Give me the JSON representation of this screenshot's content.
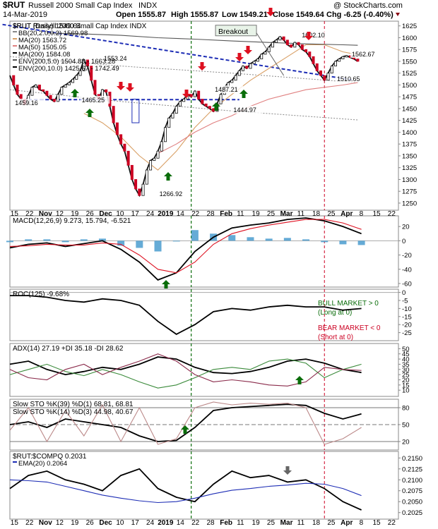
{
  "header": {
    "symbol": "$RUT",
    "name": "Russell 2000 Small Cap Index",
    "exchange": "INDX",
    "date": "14-Mar-2019",
    "open": "Open 1555.87",
    "high": "High 1555.87",
    "low": "Low 1549.21",
    "close": "Close 1549.64",
    "chg": "Chg -6.25 (-0.40%)",
    "watermark": "@ StockCharts.com"
  },
  "colors": {
    "price_up": "#111111",
    "price_down": "#cc0022",
    "ma20": "#d9a066",
    "ma50": "#e08080",
    "ma200": "#555555",
    "env_dotted": "#888888",
    "trendline": "#1d2db5",
    "breakout_green": "#0a6d0a",
    "march_red": "#cc0022",
    "arrow_green": "#0a6d0a",
    "arrow_red": "#dd1020",
    "arrow_gray": "#666666",
    "macd_hist": "#4a9ccf",
    "signal_red": "#dd1020"
  },
  "chart_data": [
    {
      "type": "line",
      "panel": "price",
      "title": "$RUT Russell 2000 Small Cap Index INDX",
      "legend": [
        "$RUT (Daily) 1549.64",
        "BB(20,2.0,0.2) 1569.98",
        "MA(20) 1563.72",
        "MA(50) 1505.05",
        "MA(200) 1584.08",
        "ENV(200,5.0) 1504.88 - 1663.28",
        "ENV(200,10.0) 1425.67 - 1742.49"
      ],
      "ylim": [
        1235,
        1635
      ],
      "yticks": [
        1250,
        1275,
        1300,
        1325,
        1350,
        1375,
        1400,
        1425,
        1450,
        1475,
        1500,
        1525,
        1550,
        1575,
        1600,
        1625
      ],
      "series": [
        {
          "name": "$RUT (Daily)",
          "x": [
            0,
            2,
            4,
            6,
            8,
            10,
            12,
            14,
            16,
            18,
            20,
            22,
            24,
            26,
            28,
            30,
            32,
            34,
            36,
            38,
            40,
            42,
            44,
            46,
            48,
            50,
            52,
            54,
            56,
            58,
            60,
            62,
            64,
            66,
            68,
            70,
            72,
            74,
            76,
            78,
            80,
            82,
            84,
            86,
            88,
            90,
            92,
            94,
            96,
            98,
            100,
            102,
            104,
            106,
            108,
            110,
            112,
            114,
            116,
            118,
            120,
            122,
            124,
            126,
            128,
            130,
            132,
            134,
            136,
            138,
            140,
            142,
            144,
            146,
            148,
            150,
            152,
            154,
            156,
            158,
            160,
            162,
            164,
            166,
            168,
            170,
            172,
            174,
            176,
            178,
            180,
            182,
            184,
            186,
            188
          ],
          "values": [
            1520,
            1500,
            1480,
            1470,
            1459,
            1478,
            1495,
            1500,
            1490,
            1487,
            1478,
            1470,
            1465,
            1480,
            1495,
            1500,
            1505,
            1512,
            1520,
            1530,
            1553,
            1540,
            1510,
            1480,
            1470,
            1490,
            1485,
            1455,
            1420,
            1395,
            1375,
            1360,
            1330,
            1300,
            1280,
            1266,
            1290,
            1320,
            1340,
            1345,
            1360,
            1380,
            1410,
            1430,
            1440,
            1455,
            1465,
            1470,
            1480,
            1475,
            1487,
            1470,
            1460,
            1455,
            1450,
            1444,
            1460,
            1480,
            1495,
            1505,
            1510,
            1520,
            1530,
            1540,
            1535,
            1545,
            1550,
            1555,
            1565,
            1570,
            1580,
            1590,
            1595,
            1602,
            1595,
            1585,
            1580,
            1590,
            1585,
            1575,
            1570,
            1560,
            1545,
            1530,
            1520,
            1510,
            1525,
            1540,
            1550,
            1555,
            1560,
            1562,
            1558,
            1555,
            1550
          ]
        },
        {
          "name": "MA(20)",
          "x": [
            40,
            50,
            60,
            70,
            80,
            90,
            100,
            110,
            120,
            130,
            140,
            150,
            160,
            170,
            180,
            188
          ],
          "values": [
            1440,
            1420,
            1390,
            1350,
            1320,
            1360,
            1410,
            1450,
            1480,
            1510,
            1535,
            1560,
            1585,
            1585,
            1570,
            1564
          ]
        },
        {
          "name": "MA(50)",
          "x": [
            80,
            90,
            100,
            110,
            120,
            130,
            140,
            150,
            160,
            170,
            180,
            188
          ],
          "values": [
            1355,
            1375,
            1400,
            1420,
            1435,
            1455,
            1470,
            1480,
            1490,
            1495,
            1500,
            1505
          ]
        },
        {
          "name": "MA(200)",
          "x": [
            20,
            40,
            60,
            80,
            100,
            120,
            140,
            160,
            180,
            188
          ],
          "values": [
            1610,
            1608,
            1605,
            1600,
            1597,
            1593,
            1590,
            1587,
            1585,
            1584
          ]
        }
      ],
      "annotations": [
        {
          "text": "1459.16",
          "x": 10,
          "y": 1459
        },
        {
          "text": "1553.24",
          "x": 58,
          "y": 1553
        },
        {
          "text": "1465.25",
          "x": 46,
          "y": 1465
        },
        {
          "text": "1266.92",
          "x": 88,
          "y": 1266
        },
        {
          "text": "1487.21",
          "x": 118,
          "y": 1487
        },
        {
          "text": "1444.97",
          "x": 128,
          "y": 1444
        },
        {
          "text": "1602.10",
          "x": 165,
          "y": 1602
        },
        {
          "text": "1562.67",
          "x": 192,
          "y": 1562
        },
        {
          "text": "1510.65",
          "x": 184,
          "y": 1510
        },
        {
          "text": "Breakout",
          "x": 118,
          "y": 1610
        }
      ],
      "xticks": [
        "15",
        "22",
        "Nov",
        "12",
        "19",
        "26",
        "Dec",
        "10",
        "17",
        "24",
        "2019",
        "14",
        "22",
        "28",
        "Feb",
        "11",
        "19",
        "25",
        "Mar",
        "11",
        "18",
        "25",
        "Apr",
        "8",
        "15",
        "22"
      ]
    },
    {
      "type": "line",
      "panel": "macd",
      "title": "MACD(12,26,9) 9.273, 15.794, -6.521",
      "ylim": [
        -65,
        35
      ],
      "yticks": [
        20,
        0,
        -20,
        -40,
        -60
      ],
      "series": [
        {
          "name": "MACD",
          "x": [
            0,
            10,
            20,
            30,
            40,
            50,
            60,
            70,
            80,
            90,
            100,
            110,
            120,
            130,
            140,
            150,
            160,
            170,
            180,
            190
          ],
          "values": [
            -10,
            -5,
            -3,
            -8,
            -4,
            0,
            -12,
            -30,
            -55,
            -45,
            -15,
            5,
            18,
            22,
            25,
            30,
            32,
            28,
            20,
            10
          ]
        },
        {
          "name": "Signal",
          "x": [
            0,
            10,
            20,
            30,
            40,
            50,
            60,
            70,
            80,
            90,
            100,
            110,
            120,
            130,
            140,
            150,
            160,
            170,
            180,
            190
          ],
          "values": [
            -8,
            -7,
            -5,
            -6,
            -6,
            -3,
            -5,
            -20,
            -40,
            -45,
            -30,
            -5,
            10,
            17,
            22,
            26,
            30,
            30,
            25,
            16
          ]
        }
      ]
    },
    {
      "type": "line",
      "panel": "roc",
      "title": "ROC(125) -9.68%",
      "ylim": [
        -30,
        2
      ],
      "yticks": [
        0,
        -5,
        -10,
        -15,
        -20,
        -25
      ],
      "series": [
        {
          "name": "ROC(125)",
          "x": [
            0,
            10,
            20,
            30,
            40,
            50,
            60,
            70,
            80,
            90,
            100,
            110,
            120,
            130,
            140,
            150,
            160,
            170,
            180,
            190
          ],
          "values": [
            -2,
            -2,
            -3,
            -5,
            -6,
            -4,
            -5,
            -8,
            -18,
            -26,
            -20,
            -12,
            -10,
            -11,
            -9,
            -8,
            -9,
            -9,
            -11,
            -10
          ]
        }
      ],
      "notes": [
        "BULL MARKET > 0",
        "(Long at 0)",
        "BEAR MARKET < 0",
        "(Short at 0)"
      ]
    },
    {
      "type": "line",
      "panel": "adx",
      "title": "ADX(14) 27.19 +DI 35.18 -DI 28.62",
      "ylim": [
        4,
        55
      ],
      "yticks": [
        50,
        45,
        40,
        35,
        30,
        25,
        20,
        15,
        10
      ],
      "series": [
        {
          "name": "ADX(14)",
          "x": [
            0,
            10,
            20,
            30,
            40,
            50,
            60,
            70,
            80,
            90,
            100,
            110,
            120,
            130,
            140,
            150,
            160,
            170,
            180,
            190
          ],
          "values": [
            35,
            38,
            30,
            25,
            28,
            32,
            30,
            35,
            42,
            40,
            32,
            27,
            26,
            28,
            32,
            38,
            40,
            36,
            30,
            27
          ]
        },
        {
          "name": "+DI",
          "x": [
            0,
            10,
            20,
            30,
            40,
            50,
            60,
            70,
            80,
            90,
            100,
            110,
            120,
            130,
            140,
            150,
            160,
            170,
            180,
            190
          ],
          "values": [
            25,
            30,
            35,
            28,
            24,
            30,
            25,
            18,
            12,
            15,
            22,
            30,
            32,
            30,
            38,
            40,
            36,
            22,
            30,
            35
          ]
        },
        {
          "name": "-DI",
          "x": [
            0,
            10,
            20,
            30,
            40,
            50,
            60,
            70,
            80,
            90,
            100,
            110,
            120,
            130,
            140,
            150,
            160,
            170,
            180,
            190
          ],
          "values": [
            30,
            22,
            20,
            30,
            35,
            25,
            32,
            38,
            45,
            38,
            25,
            18,
            20,
            18,
            15,
            14,
            18,
            32,
            30,
            29
          ]
        }
      ]
    },
    {
      "type": "line",
      "panel": "stochastics",
      "title": "Slow STO %K(39) %D(1) 68.81, 68.81",
      "subtitle": "Slow STO %K(14) %D(3) 44.98, 40.67",
      "ylim": [
        5,
        95
      ],
      "yticks": [
        80,
        50,
        20
      ],
      "series": [
        {
          "name": "Slow STO %K(39)",
          "x": [
            0,
            10,
            20,
            30,
            40,
            50,
            60,
            70,
            80,
            90,
            100,
            110,
            120,
            130,
            140,
            150,
            160,
            170,
            180,
            190
          ],
          "values": [
            50,
            55,
            45,
            60,
            55,
            50,
            45,
            30,
            20,
            22,
            45,
            75,
            80,
            82,
            84,
            86,
            84,
            70,
            60,
            69
          ]
        },
        {
          "name": "Slow STO %K(14)",
          "x": [
            0,
            10,
            20,
            30,
            40,
            50,
            60,
            70,
            80,
            90,
            100,
            110,
            120,
            130,
            140,
            150,
            160,
            170,
            180,
            190
          ],
          "values": [
            40,
            80,
            20,
            75,
            30,
            85,
            20,
            80,
            15,
            25,
            80,
            90,
            85,
            88,
            86,
            88,
            80,
            15,
            25,
            45
          ]
        }
      ]
    },
    {
      "type": "line",
      "panel": "ratio",
      "title": "$RUT:$COMPQ 0.2031",
      "legend": [
        "EMA(20) 0.2064"
      ],
      "ylim": [
        0.201,
        0.2165
      ],
      "yticks": [
        0.215,
        0.2125,
        0.21,
        0.2075,
        0.205,
        0.2025
      ],
      "series": [
        {
          "name": "$RUT:$COMPQ",
          "x": [
            0,
            10,
            20,
            30,
            40,
            50,
            60,
            70,
            80,
            90,
            100,
            110,
            120,
            130,
            140,
            150,
            160,
            170,
            180,
            190
          ],
          "values": [
            0.208,
            0.211,
            0.212,
            0.21,
            0.209,
            0.2075,
            0.211,
            0.2125,
            0.208,
            0.206,
            0.205,
            0.209,
            0.212,
            0.2105,
            0.211,
            0.2095,
            0.21,
            0.208,
            0.205,
            0.2031
          ]
        },
        {
          "name": "EMA(20)",
          "x": [
            0,
            10,
            20,
            30,
            40,
            50,
            60,
            70,
            80,
            90,
            100,
            110,
            120,
            130,
            140,
            150,
            160,
            170,
            180,
            190
          ],
          "values": [
            0.21,
            0.2098,
            0.2095,
            0.2085,
            0.2075,
            0.2065,
            0.2058,
            0.2052,
            0.2048,
            0.205,
            0.2058,
            0.2068,
            0.2076,
            0.208,
            0.2085,
            0.2088,
            0.2092,
            0.209,
            0.208,
            0.2064
          ]
        }
      ]
    }
  ]
}
